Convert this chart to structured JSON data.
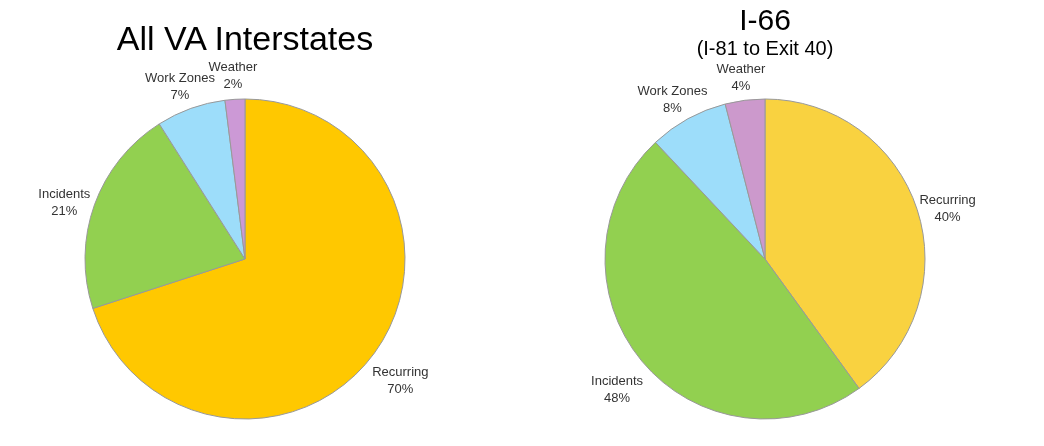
{
  "chart_data": [
    {
      "type": "pie",
      "title": "All VA Interstates",
      "categories": [
        "Recurring",
        "Incidents",
        "Work Zones",
        "Weather"
      ],
      "values": [
        70,
        21,
        7,
        2
      ],
      "value_labels": [
        "70%",
        "21%",
        "7%",
        "2%"
      ],
      "colors": [
        "#ffc800",
        "#92d050",
        "#9dddfa",
        "#cc99d6"
      ]
    },
    {
      "type": "pie",
      "title": "I-66",
      "subtitle": "(I-81 to Exit 40)",
      "categories": [
        "Recurring",
        "Incidents",
        "Work Zones",
        "Weather"
      ],
      "values": [
        40,
        48,
        8,
        4
      ],
      "value_labels": [
        "40%",
        "48%",
        "8%",
        "4%"
      ],
      "colors": [
        "#f9d240",
        "#92d050",
        "#9dddfa",
        "#cc99cc"
      ]
    }
  ]
}
